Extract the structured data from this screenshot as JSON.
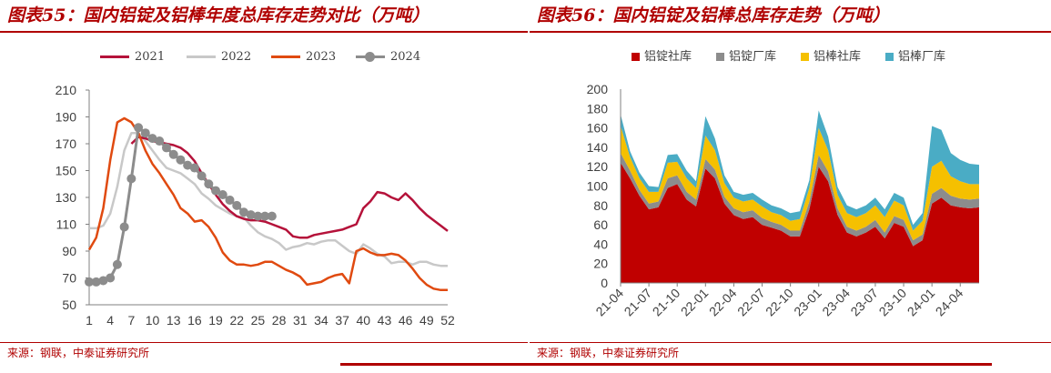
{
  "left": {
    "title": "图表55：国内铝锭及铝棒年度总库存走势对比（万吨）",
    "source": "来源：钢联，中泰证券研究所",
    "colors": {
      "2021": "#b5123a",
      "2022": "#c8c8c8",
      "2023": "#e04a10",
      "2024": "#8c8c8c"
    },
    "chart_data": {
      "type": "line",
      "xlabel": "",
      "ylabel": "",
      "xlim": [
        1,
        52
      ],
      "ylim": [
        50,
        210
      ],
      "yticks": [
        50,
        70,
        90,
        110,
        130,
        150,
        170,
        190,
        210
      ],
      "xticks": [
        1,
        4,
        7,
        10,
        13,
        16,
        19,
        22,
        25,
        28,
        31,
        34,
        37,
        40,
        43,
        46,
        49,
        52
      ],
      "series": [
        {
          "name": "2021",
          "marker": false,
          "values": [
            [
              7,
              170
            ],
            [
              8,
              175
            ],
            [
              9,
              174
            ],
            [
              10,
              172
            ],
            [
              11,
              171
            ],
            [
              12,
              170
            ],
            [
              13,
              169
            ],
            [
              14,
              167
            ],
            [
              15,
              163
            ],
            [
              16,
              157
            ],
            [
              17,
              148
            ],
            [
              18,
              140
            ],
            [
              19,
              132
            ],
            [
              20,
              125
            ],
            [
              21,
              120
            ],
            [
              22,
              116
            ],
            [
              23,
              114
            ],
            [
              24,
              113
            ],
            [
              25,
              113
            ],
            [
              26,
              112
            ],
            [
              27,
              110
            ],
            [
              28,
              108
            ],
            [
              29,
              106
            ],
            [
              30,
              101
            ],
            [
              31,
              100
            ],
            [
              32,
              100
            ],
            [
              33,
              102
            ],
            [
              34,
              103
            ],
            [
              35,
              104
            ],
            [
              36,
              105
            ],
            [
              37,
              106
            ],
            [
              38,
              108
            ],
            [
              39,
              110
            ],
            [
              40,
              122
            ],
            [
              41,
              127
            ],
            [
              42,
              134
            ],
            [
              43,
              133
            ],
            [
              44,
              130
            ],
            [
              45,
              128
            ],
            [
              46,
              133
            ],
            [
              47,
              128
            ],
            [
              48,
              122
            ],
            [
              49,
              117
            ],
            [
              50,
              113
            ],
            [
              51,
              109
            ],
            [
              52,
              105
            ]
          ]
        },
        {
          "name": "2022",
          "marker": false,
          "values": [
            [
              1,
              107
            ],
            [
              2,
              107
            ],
            [
              3,
              109
            ],
            [
              4,
              118
            ],
            [
              5,
              138
            ],
            [
              6,
              165
            ],
            [
              7,
              178
            ],
            [
              8,
              178
            ],
            [
              9,
              172
            ],
            [
              10,
              165
            ],
            [
              11,
              158
            ],
            [
              12,
              152
            ],
            [
              13,
              150
            ],
            [
              14,
              148
            ],
            [
              15,
              144
            ],
            [
              16,
              140
            ],
            [
              17,
              133
            ],
            [
              18,
              129
            ],
            [
              19,
              124
            ],
            [
              20,
              121
            ],
            [
              21,
              118
            ],
            [
              22,
              116
            ],
            [
              23,
              115
            ],
            [
              24,
              109
            ],
            [
              25,
              104
            ],
            [
              26,
              101
            ],
            [
              27,
              99
            ],
            [
              28,
              96
            ],
            [
              29,
              91
            ],
            [
              30,
              93
            ],
            [
              31,
              94
            ],
            [
              32,
              96
            ],
            [
              33,
              95
            ],
            [
              34,
              97
            ],
            [
              35,
              98
            ],
            [
              36,
              98
            ],
            [
              37,
              94
            ],
            [
              38,
              90
            ],
            [
              39,
              88
            ],
            [
              40,
              95
            ],
            [
              41,
              92
            ],
            [
              42,
              88
            ],
            [
              43,
              86
            ],
            [
              44,
              81
            ],
            [
              45,
              82
            ],
            [
              46,
              82
            ],
            [
              47,
              80
            ],
            [
              48,
              82
            ],
            [
              49,
              82
            ],
            [
              50,
              80
            ],
            [
              51,
              79
            ],
            [
              52,
              79
            ]
          ]
        },
        {
          "name": "2023",
          "marker": false,
          "values": [
            [
              1,
              91
            ],
            [
              2,
              100
            ],
            [
              3,
              122
            ],
            [
              4,
              158
            ],
            [
              5,
              186
            ],
            [
              6,
              189
            ],
            [
              7,
              186
            ],
            [
              8,
              178
            ],
            [
              9,
              165
            ],
            [
              10,
              155
            ],
            [
              11,
              148
            ],
            [
              12,
              140
            ],
            [
              13,
              132
            ],
            [
              14,
              122
            ],
            [
              15,
              118
            ],
            [
              16,
              112
            ],
            [
              17,
              113
            ],
            [
              18,
              108
            ],
            [
              19,
              100
            ],
            [
              20,
              89
            ],
            [
              21,
              83
            ],
            [
              22,
              80
            ],
            [
              23,
              80
            ],
            [
              24,
              79
            ],
            [
              25,
              80
            ],
            [
              26,
              82
            ],
            [
              27,
              82
            ],
            [
              28,
              79
            ],
            [
              29,
              76
            ],
            [
              30,
              74
            ],
            [
              31,
              71
            ],
            [
              32,
              65
            ],
            [
              33,
              66
            ],
            [
              34,
              67
            ],
            [
              35,
              70
            ],
            [
              36,
              72
            ],
            [
              37,
              73
            ],
            [
              38,
              66
            ],
            [
              39,
              90
            ],
            [
              40,
              92
            ],
            [
              41,
              89
            ],
            [
              42,
              87
            ],
            [
              43,
              87
            ],
            [
              44,
              88
            ],
            [
              45,
              87
            ],
            [
              46,
              83
            ],
            [
              47,
              77
            ],
            [
              48,
              70
            ],
            [
              49,
              65
            ],
            [
              50,
              62
            ],
            [
              51,
              61
            ],
            [
              52,
              61
            ]
          ]
        },
        {
          "name": "2024",
          "marker": true,
          "values": [
            [
              1,
              67
            ],
            [
              2,
              67
            ],
            [
              3,
              68
            ],
            [
              4,
              70
            ],
            [
              5,
              80
            ],
            [
              6,
              108
            ],
            [
              7,
              144
            ],
            [
              8,
              182
            ],
            [
              9,
              178
            ],
            [
              10,
              174
            ],
            [
              11,
              172
            ],
            [
              12,
              167
            ],
            [
              13,
              162
            ],
            [
              14,
              158
            ],
            [
              15,
              154
            ],
            [
              16,
              152
            ],
            [
              17,
              146
            ],
            [
              18,
              140
            ],
            [
              19,
              135
            ],
            [
              20,
              132
            ],
            [
              21,
              128
            ],
            [
              22,
              124
            ],
            [
              23,
              119
            ],
            [
              24,
              117
            ],
            [
              25,
              116
            ],
            [
              26,
              116
            ],
            [
              27,
              116
            ]
          ]
        }
      ]
    }
  },
  "right": {
    "title": "图表56：国内铝锭及铝棒总库存走势（万吨）",
    "source": "来源：钢联，中泰证券研究所",
    "colors": [
      "#c00000",
      "#8c8c8c",
      "#f5c000",
      "#4aacc5"
    ],
    "chart_data": {
      "type": "area",
      "stacked": true,
      "xlabel": "",
      "ylabel": "",
      "ylim": [
        0,
        200
      ],
      "yticks": [
        0,
        20,
        40,
        60,
        80,
        100,
        120,
        140,
        160,
        180,
        200
      ],
      "x_tick_labels": [
        "21-04",
        "21-07",
        "21-10",
        "22-01",
        "22-04",
        "22-07",
        "22-10",
        "23-01",
        "23-04",
        "23-07",
        "23-10",
        "24-01",
        "24-04"
      ],
      "x": [
        "21-04",
        "21-05",
        "21-06",
        "21-07",
        "21-08",
        "21-09",
        "21-10",
        "21-11",
        "21-12",
        "22-01",
        "22-02",
        "22-03",
        "22-04",
        "22-05",
        "22-06",
        "22-07",
        "22-08",
        "22-09",
        "22-10",
        "22-11",
        "22-12",
        "23-01",
        "23-02",
        "23-03",
        "23-04",
        "23-05",
        "23-06",
        "23-07",
        "23-08",
        "23-09",
        "23-10",
        "23-11",
        "23-12",
        "24-01",
        "24-02",
        "24-03",
        "24-04",
        "24-05",
        "24-06"
      ],
      "series": [
        {
          "name": "铝锭社库",
          "values": [
            124,
            108,
            90,
            76,
            78,
            98,
            102,
            86,
            79,
            118,
            108,
            82,
            70,
            66,
            68,
            60,
            57,
            54,
            48,
            48,
            76,
            120,
            105,
            70,
            52,
            48,
            52,
            58,
            46,
            62,
            58,
            38,
            44,
            82,
            88,
            80,
            78,
            77,
            78
          ]
        },
        {
          "name": "铝锭厂库",
          "values": [
            10,
            8,
            6,
            6,
            6,
            10,
            9,
            8,
            7,
            10,
            9,
            7,
            7,
            7,
            7,
            7,
            6,
            6,
            6,
            6,
            8,
            12,
            10,
            7,
            6,
            6,
            6,
            7,
            6,
            7,
            7,
            6,
            6,
            10,
            10,
            10,
            9,
            9,
            9
          ]
        },
        {
          "name": "铝棒社库",
          "values": [
            28,
            14,
            12,
            12,
            10,
            16,
            14,
            14,
            12,
            24,
            20,
            14,
            11,
            11,
            11,
            12,
            10,
            10,
            10,
            12,
            14,
            28,
            22,
            14,
            14,
            14,
            14,
            15,
            16,
            16,
            15,
            10,
            14,
            28,
            28,
            20,
            18,
            16,
            15
          ]
        },
        {
          "name": "铝棒厂库",
          "values": [
            12,
            6,
            6,
            6,
            5,
            8,
            8,
            8,
            7,
            20,
            12,
            8,
            6,
            7,
            7,
            7,
            7,
            7,
            8,
            8,
            8,
            18,
            14,
            8,
            8,
            8,
            8,
            8,
            8,
            8,
            8,
            6,
            8,
            42,
            32,
            24,
            22,
            21,
            20
          ]
        }
      ]
    }
  }
}
